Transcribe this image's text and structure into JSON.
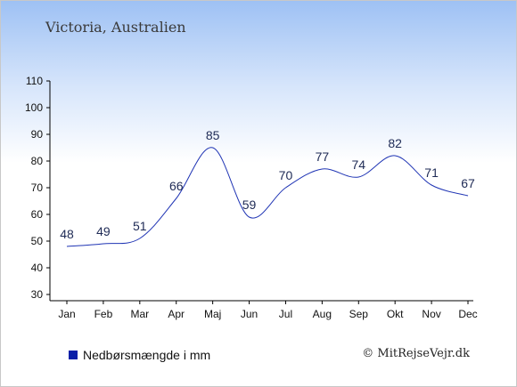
{
  "colors": {
    "line": "#1f34b4",
    "legend_swatch": "#0a1fa8"
  },
  "chart_data": {
    "type": "line",
    "title": "Victoria, Australien",
    "categories": [
      "Jan",
      "Feb",
      "Mar",
      "Apr",
      "Maj",
      "Jun",
      "Jul",
      "Aug",
      "Sep",
      "Okt",
      "Nov",
      "Dec"
    ],
    "series": [
      {
        "name": "Nedbørsmængde i mm",
        "values": [
          48,
          49,
          51,
          66,
          85,
          59,
          70,
          77,
          74,
          82,
          71,
          67
        ]
      }
    ],
    "ylim": [
      30,
      110
    ],
    "yticks": [
      30,
      40,
      50,
      60,
      70,
      80,
      90,
      100,
      110
    ],
    "legend_placement": "bottom-left",
    "grid": false
  },
  "credit": "© MitRejseVejr.dk"
}
